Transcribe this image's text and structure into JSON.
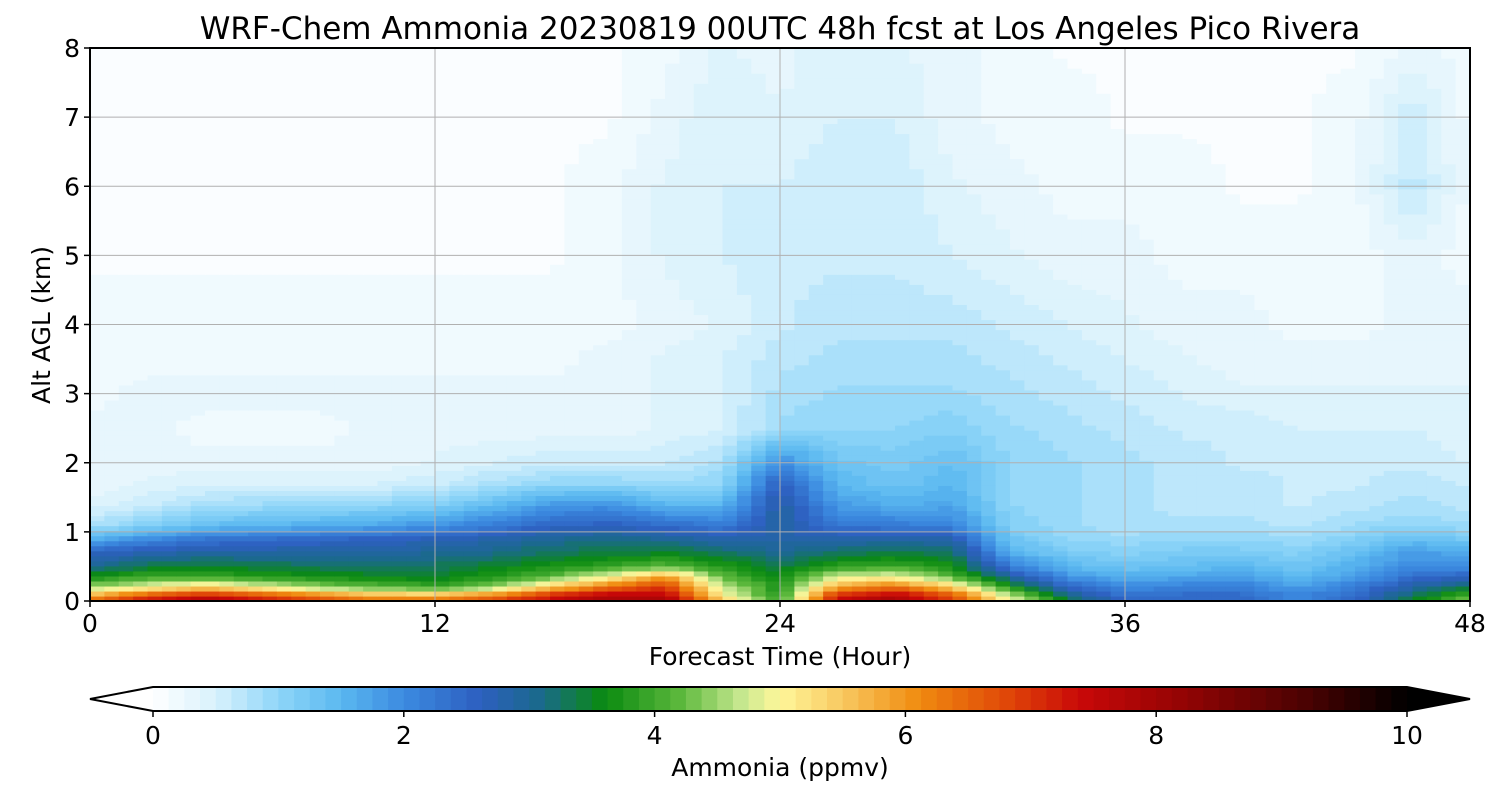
{
  "chart_data": {
    "type": "heatmap",
    "title": "WRF-Chem Ammonia  20230819 00UTC 48h fcst at Los Angeles Pico Rivera",
    "xlabel": "Forecast Time (Hour)",
    "ylabel": "Alt AGL (km)",
    "xlim": [
      0,
      48
    ],
    "ylim": [
      0,
      8
    ],
    "xticks": [
      "0",
      "12",
      "24",
      "36",
      "48"
    ],
    "yticks": [
      "0",
      "1",
      "2",
      "3",
      "4",
      "5",
      "6",
      "7",
      "8"
    ],
    "grid": true,
    "colorbar": {
      "label": "Ammonia  (ppmv)",
      "min": 0,
      "max": 10,
      "ticks": [
        "0",
        "2",
        "4",
        "6",
        "8",
        "10"
      ],
      "extend": "both",
      "stops": [
        {
          "v": 0.0,
          "c": "#ffffff"
        },
        {
          "v": 0.5,
          "c": "#d8f1fc"
        },
        {
          "v": 1.0,
          "c": "#8fd6f8"
        },
        {
          "v": 1.5,
          "c": "#5ab8f0"
        },
        {
          "v": 2.0,
          "c": "#3c8ae0"
        },
        {
          "v": 2.6,
          "c": "#2d5fc0"
        },
        {
          "v": 3.1,
          "c": "#1a6a8a"
        },
        {
          "v": 3.6,
          "c": "#0a8a10"
        },
        {
          "v": 4.2,
          "c": "#5cb83c"
        },
        {
          "v": 4.7,
          "c": "#c8e890"
        },
        {
          "v": 5.0,
          "c": "#fff79a"
        },
        {
          "v": 5.5,
          "c": "#f8c860"
        },
        {
          "v": 6.1,
          "c": "#f08c10"
        },
        {
          "v": 6.8,
          "c": "#e04808"
        },
        {
          "v": 7.4,
          "c": "#c80808"
        },
        {
          "v": 8.2,
          "c": "#940404"
        },
        {
          "v": 9.2,
          "c": "#4a0202"
        },
        {
          "v": 10.0,
          "c": "#000000"
        }
      ]
    },
    "x_hours": [
      0,
      2,
      4,
      6,
      8,
      10,
      12,
      14,
      16,
      18,
      20,
      22,
      24,
      26,
      28,
      30,
      32,
      34,
      36,
      38,
      40,
      42,
      44,
      46,
      48
    ],
    "z_km": [
      0.0,
      0.1,
      0.2,
      0.35,
      0.5,
      0.7,
      0.9,
      1.1,
      1.4,
      1.7,
      2.0,
      2.5,
      3.0,
      3.5,
      4.0,
      5.0,
      6.0,
      7.0,
      8.0
    ],
    "values_ppmv": [
      [
        6.5,
        7.5,
        8.0,
        7.5,
        7.0,
        6.5,
        6.5,
        7.0,
        7.5,
        8.0,
        8.0,
        5.5,
        4.0,
        7.5,
        8.0,
        7.0,
        5.0,
        3.5,
        2.5,
        2.5,
        2.5,
        2.0,
        2.5,
        3.5,
        4.5
      ],
      [
        5.5,
        6.5,
        7.0,
        6.5,
        6.0,
        5.5,
        5.5,
        6.0,
        7.0,
        7.5,
        7.5,
        5.0,
        3.8,
        7.0,
        7.5,
        6.5,
        4.5,
        3.0,
        2.3,
        2.4,
        2.4,
        2.0,
        2.4,
        3.2,
        4.0
      ],
      [
        4.5,
        5.0,
        5.5,
        5.0,
        4.5,
        4.2,
        4.0,
        4.5,
        5.5,
        6.5,
        7.0,
        4.8,
        3.7,
        6.0,
        6.5,
        5.5,
        3.8,
        2.6,
        2.0,
        2.2,
        2.2,
        1.8,
        2.2,
        2.9,
        3.4
      ],
      [
        3.7,
        4.0,
        4.0,
        3.8,
        3.7,
        3.6,
        3.5,
        3.8,
        4.2,
        5.0,
        6.0,
        4.2,
        3.6,
        4.8,
        5.0,
        4.2,
        3.0,
        1.9,
        1.6,
        1.7,
        1.8,
        1.5,
        1.8,
        2.4,
        2.6
      ],
      [
        3.0,
        3.4,
        3.5,
        3.4,
        3.3,
        3.2,
        3.3,
        3.5,
        3.7,
        3.9,
        4.2,
        3.8,
        3.4,
        3.9,
        4.0,
        3.7,
        2.2,
        1.5,
        1.3,
        1.4,
        1.5,
        1.3,
        1.6,
        2.0,
        2.0
      ],
      [
        2.6,
        2.8,
        2.9,
        2.9,
        2.9,
        2.9,
        3.0,
        3.1,
        3.3,
        3.4,
        3.5,
        3.3,
        3.0,
        3.3,
        3.4,
        3.3,
        1.6,
        1.2,
        1.1,
        1.2,
        1.2,
        1.1,
        1.4,
        1.8,
        1.7
      ],
      [
        1.6,
        2.0,
        2.3,
        2.4,
        2.5,
        2.6,
        2.7,
        2.8,
        3.0,
        3.1,
        3.0,
        2.8,
        2.8,
        2.8,
        2.9,
        2.8,
        1.3,
        1.0,
        0.9,
        1.0,
        1.0,
        0.9,
        1.1,
        1.4,
        1.2
      ],
      [
        0.8,
        1.1,
        1.4,
        1.5,
        1.6,
        1.7,
        1.9,
        2.2,
        2.5,
        2.6,
        2.4,
        2.2,
        2.9,
        2.3,
        2.2,
        2.1,
        1.1,
        0.9,
        0.8,
        0.8,
        0.8,
        0.7,
        0.9,
        1.0,
        0.9
      ],
      [
        0.4,
        0.6,
        0.8,
        0.9,
        0.9,
        1.0,
        1.1,
        1.4,
        1.8,
        1.9,
        1.5,
        1.5,
        2.9,
        1.8,
        1.6,
        1.7,
        1.0,
        0.9,
        0.8,
        0.7,
        0.7,
        0.6,
        0.7,
        0.8,
        0.7
      ],
      [
        0.3,
        0.4,
        0.5,
        0.5,
        0.5,
        0.5,
        0.6,
        0.8,
        1.0,
        1.0,
        0.9,
        1.0,
        2.6,
        1.5,
        1.3,
        1.5,
        1.0,
        0.9,
        0.8,
        0.7,
        0.7,
        0.6,
        0.6,
        0.7,
        0.6
      ],
      [
        0.3,
        0.3,
        0.3,
        0.3,
        0.3,
        0.3,
        0.4,
        0.5,
        0.6,
        0.6,
        0.6,
        0.8,
        2.0,
        1.3,
        1.2,
        1.4,
        1.0,
        0.9,
        0.8,
        0.7,
        0.6,
        0.6,
        0.6,
        0.6,
        0.5
      ],
      [
        0.3,
        0.3,
        0.2,
        0.2,
        0.2,
        0.3,
        0.3,
        0.3,
        0.3,
        0.3,
        0.4,
        0.5,
        0.9,
        1.0,
        1.0,
        1.1,
        0.9,
        0.8,
        0.7,
        0.6,
        0.6,
        0.5,
        0.5,
        0.5,
        0.4
      ],
      [
        0.2,
        0.3,
        0.3,
        0.3,
        0.3,
        0.3,
        0.3,
        0.3,
        0.3,
        0.3,
        0.4,
        0.5,
        0.8,
        0.9,
        0.9,
        0.9,
        0.8,
        0.7,
        0.6,
        0.5,
        0.4,
        0.4,
        0.4,
        0.4,
        0.4
      ],
      [
        0.2,
        0.2,
        0.2,
        0.2,
        0.2,
        0.2,
        0.2,
        0.2,
        0.2,
        0.3,
        0.4,
        0.5,
        0.7,
        0.8,
        0.8,
        0.8,
        0.7,
        0.6,
        0.5,
        0.4,
        0.3,
        0.3,
        0.3,
        0.3,
        0.3
      ],
      [
        0.2,
        0.2,
        0.2,
        0.2,
        0.2,
        0.2,
        0.2,
        0.2,
        0.2,
        0.2,
        0.3,
        0.4,
        0.6,
        0.7,
        0.7,
        0.7,
        0.6,
        0.5,
        0.4,
        0.3,
        0.3,
        0.2,
        0.2,
        0.3,
        0.3
      ],
      [
        0.1,
        0.1,
        0.1,
        0.1,
        0.1,
        0.1,
        0.1,
        0.1,
        0.1,
        0.2,
        0.4,
        0.5,
        0.6,
        0.6,
        0.6,
        0.5,
        0.4,
        0.3,
        0.3,
        0.2,
        0.2,
        0.2,
        0.2,
        0.3,
        0.2
      ],
      [
        0.1,
        0.1,
        0.1,
        0.1,
        0.1,
        0.1,
        0.1,
        0.1,
        0.1,
        0.2,
        0.4,
        0.5,
        0.5,
        0.6,
        0.6,
        0.4,
        0.3,
        0.2,
        0.2,
        0.2,
        0.1,
        0.1,
        0.2,
        0.7,
        0.2
      ],
      [
        0.1,
        0.1,
        0.1,
        0.1,
        0.1,
        0.1,
        0.1,
        0.1,
        0.1,
        0.1,
        0.3,
        0.5,
        0.4,
        0.5,
        0.5,
        0.3,
        0.2,
        0.2,
        0.1,
        0.1,
        0.1,
        0.1,
        0.2,
        0.6,
        0.2
      ],
      [
        0.1,
        0.1,
        0.1,
        0.1,
        0.1,
        0.1,
        0.1,
        0.1,
        0.1,
        0.1,
        0.2,
        0.4,
        0.3,
        0.5,
        0.4,
        0.3,
        0.2,
        0.1,
        0.1,
        0.1,
        0.1,
        0.1,
        0.1,
        0.3,
        0.2
      ]
    ]
  }
}
